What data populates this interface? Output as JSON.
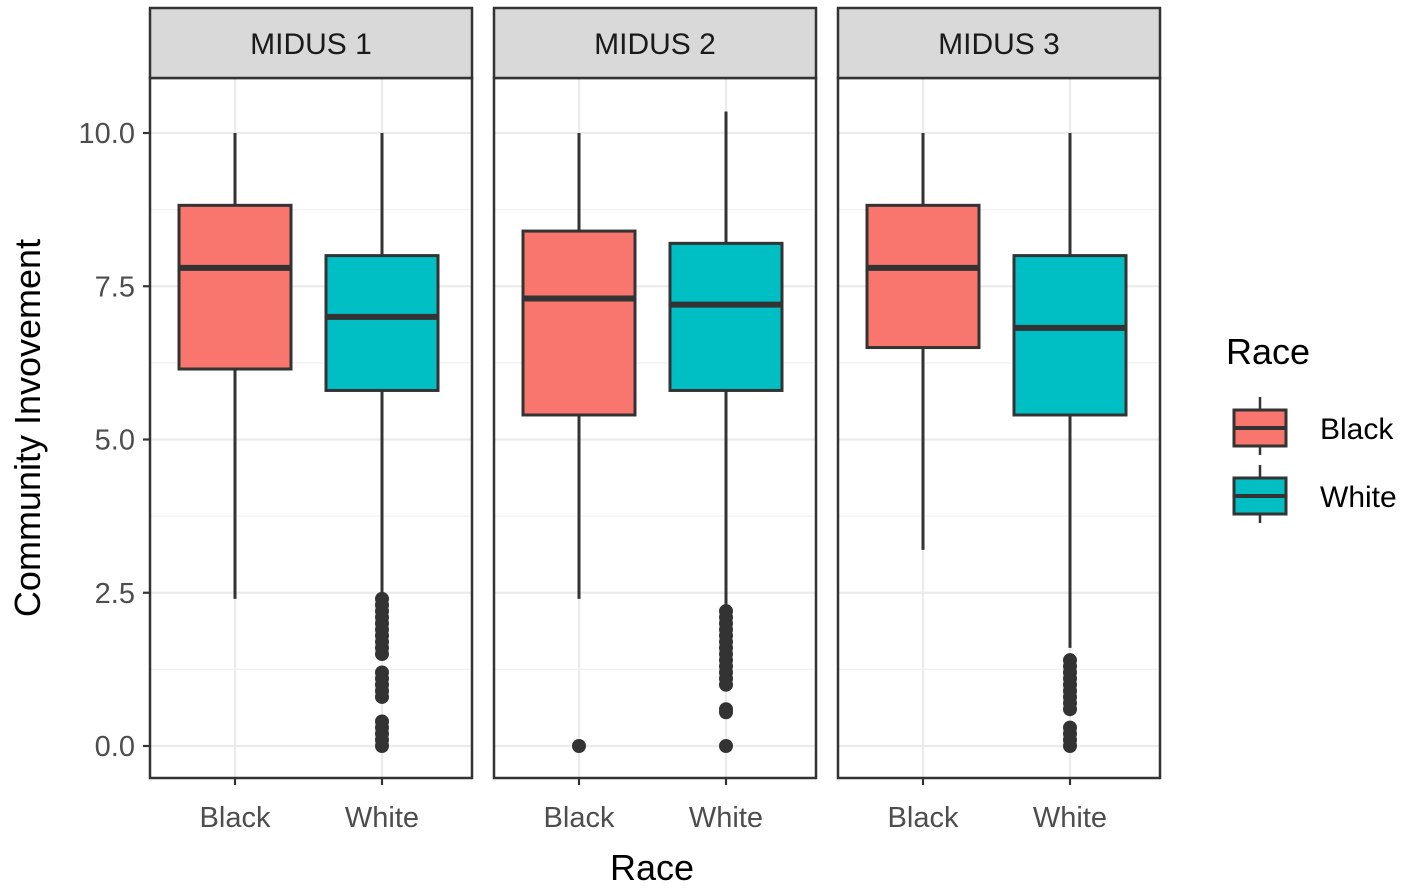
{
  "chart_data": {
    "type": "boxplot",
    "xlabel": "Race",
    "ylabel": "Community Invovement",
    "ylim": [
      -0.5,
      10.95
    ],
    "y_ticks": [
      0.0,
      2.5,
      5.0,
      7.5,
      10.0
    ],
    "y_tick_labels": [
      "0.0",
      "2.5",
      "5.0",
      "7.5",
      "10.0"
    ],
    "categories": [
      "Black",
      "White"
    ],
    "grid": true,
    "legend": {
      "title": "Race",
      "position": "right",
      "entries": [
        {
          "label": "Black",
          "color": "#F8766D"
        },
        {
          "label": "White",
          "color": "#00BFC4"
        }
      ]
    },
    "facets": [
      {
        "label": "MIDUS 1",
        "boxes": [
          {
            "category": "Black",
            "color": "#F8766D",
            "whisker_low": 2.4,
            "q1": 6.15,
            "median": 7.8,
            "q3": 8.82,
            "whisker_high": 10.0,
            "outliers": []
          },
          {
            "category": "White",
            "color": "#00BFC4",
            "whisker_low": 2.5,
            "q1": 5.8,
            "median": 7.0,
            "q3": 8.0,
            "whisker_high": 10.0,
            "outliers": [
              2.4,
              2.3,
              2.2,
              2.1,
              2.0,
              1.9,
              1.8,
              1.7,
              1.6,
              1.5,
              1.2,
              1.1,
              1.0,
              0.9,
              0.8,
              0.4,
              0.3,
              0.2,
              0.1,
              0.0
            ]
          }
        ]
      },
      {
        "label": "MIDUS 2",
        "boxes": [
          {
            "category": "Black",
            "color": "#F8766D",
            "whisker_low": 2.4,
            "q1": 5.4,
            "median": 7.3,
            "q3": 8.4,
            "whisker_high": 10.0,
            "outliers": [
              0.0
            ]
          },
          {
            "category": "White",
            "color": "#00BFC4",
            "whisker_low": 2.3,
            "q1": 5.8,
            "median": 7.2,
            "q3": 8.2,
            "whisker_high": 10.35,
            "outliers": [
              2.2,
              2.1,
              2.0,
              1.9,
              1.8,
              1.7,
              1.6,
              1.5,
              1.4,
              1.3,
              1.2,
              1.1,
              1.0,
              0.6,
              0.55,
              0.0
            ]
          }
        ]
      },
      {
        "label": "MIDUS 3",
        "boxes": [
          {
            "category": "Black",
            "color": "#F8766D",
            "whisker_low": 3.2,
            "q1": 6.5,
            "median": 7.8,
            "q3": 8.82,
            "whisker_high": 10.0,
            "outliers": []
          },
          {
            "category": "White",
            "color": "#00BFC4",
            "whisker_low": 1.6,
            "q1": 5.4,
            "median": 6.82,
            "q3": 8.0,
            "whisker_high": 10.0,
            "outliers": [
              1.4,
              1.3,
              1.2,
              1.1,
              1.0,
              0.9,
              0.8,
              0.7,
              0.6,
              0.3,
              0.2,
              0.1,
              0.0
            ]
          }
        ]
      }
    ]
  }
}
